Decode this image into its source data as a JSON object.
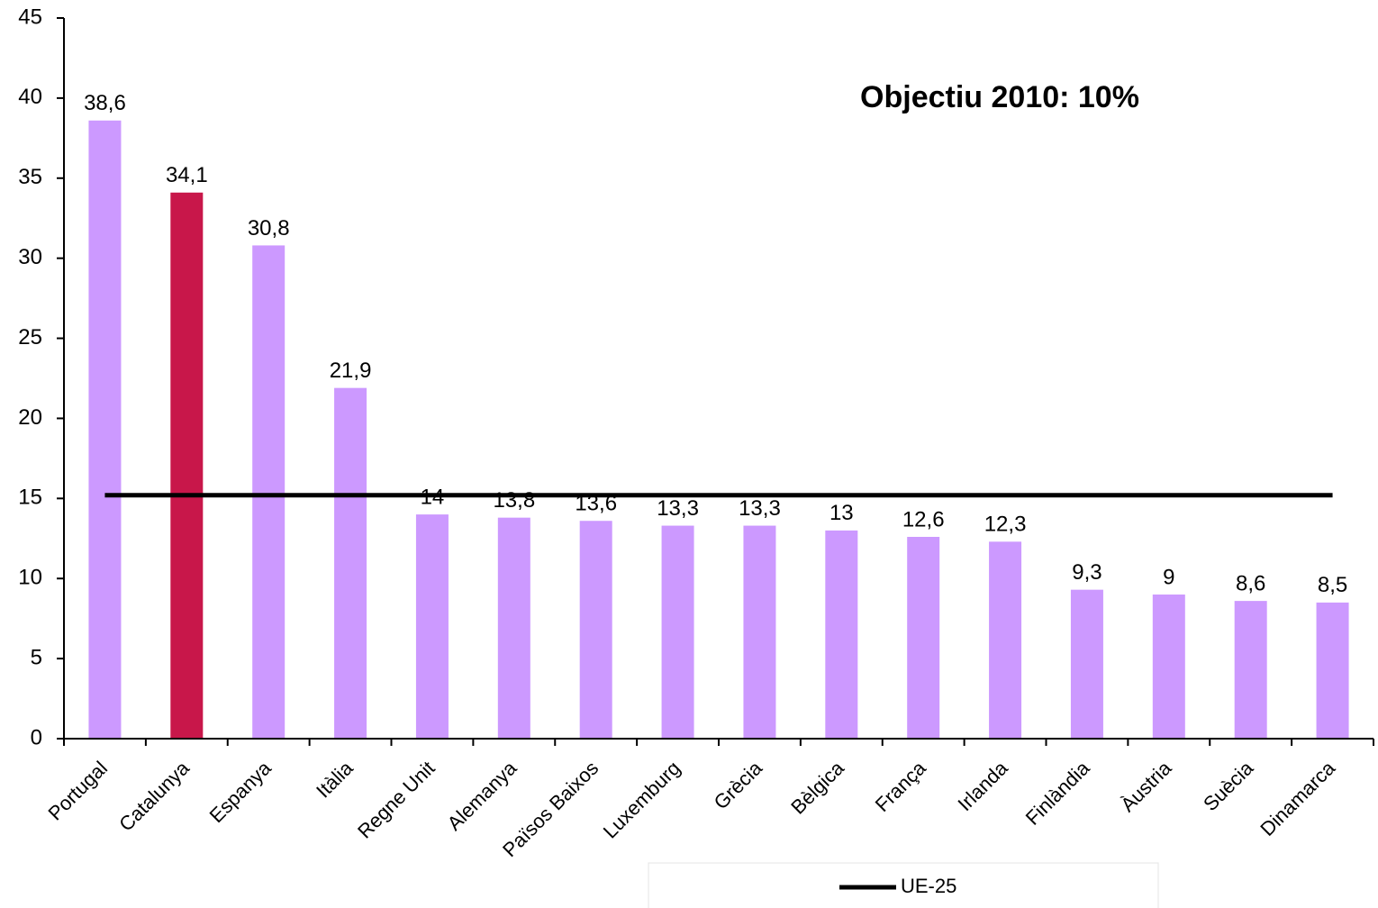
{
  "chart_data": {
    "type": "bar",
    "annotation": "Objectiu 2010: 10%",
    "categories": [
      "Portugal",
      "Catalunya",
      "Espanya",
      "Itàlia",
      "Regne Unit",
      "Alemanya",
      "Països Baixos",
      "Luxemburg",
      "Grècia",
      "Bèlgica",
      "França",
      "Irlanda",
      "Finlàndia",
      "Àustria",
      "Suècia",
      "Dinamarca"
    ],
    "values": [
      38.6,
      34.1,
      30.8,
      21.9,
      14,
      13.8,
      13.6,
      13.3,
      13.3,
      13,
      12.6,
      12.3,
      9.3,
      9,
      8.6,
      8.5
    ],
    "value_labels": [
      "38,6",
      "34,1",
      "30,8",
      "21,9",
      "14",
      "13,8",
      "13,6",
      "13,3",
      "13,3",
      "13",
      "12,6",
      "12,3",
      "9,3",
      "9",
      "8,6",
      "8,5"
    ],
    "colors": [
      "#cc99ff",
      "#c8174a",
      "#cc99ff",
      "#cc99ff",
      "#cc99ff",
      "#cc99ff",
      "#cc99ff",
      "#cc99ff",
      "#cc99ff",
      "#cc99ff",
      "#cc99ff",
      "#cc99ff",
      "#cc99ff",
      "#cc99ff",
      "#cc99ff",
      "#cc99ff"
    ],
    "reference_line": {
      "name": "UE-25",
      "value": 15.2,
      "color": "#000000"
    },
    "ylim": [
      0,
      45
    ],
    "yticks": [
      0,
      5,
      10,
      15,
      20,
      25,
      30,
      35,
      40,
      45
    ],
    "legend": "bottom"
  }
}
